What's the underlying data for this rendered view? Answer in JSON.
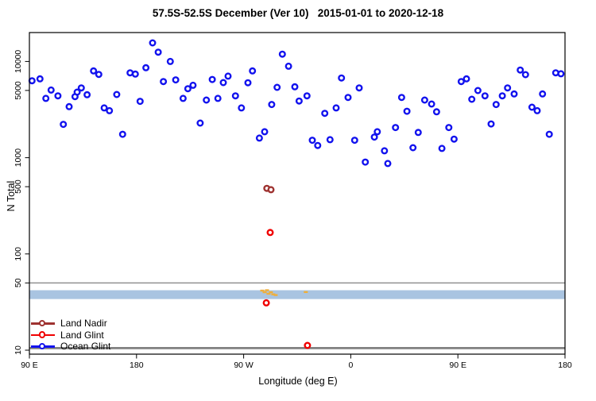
{
  "title": "57.5S-52.5S December (Ver 10)   2015-01-01 to 2020-12-18",
  "chart_data": {
    "type": "scatter",
    "title": "57.5S-52.5S December (Ver 10)   2015-01-01 to 2020-12-18",
    "xlabel": "Longitude (deg E)",
    "ylabel": "N Total",
    "x_axis": {
      "domain": [
        90,
        540
      ],
      "ticks": [
        {
          "value": 90,
          "label": "90 E"
        },
        {
          "value": 180,
          "label": "180"
        },
        {
          "value": 270,
          "label": "90 W"
        },
        {
          "value": 360,
          "label": "0"
        },
        {
          "value": 450,
          "label": "90 E"
        },
        {
          "value": 540,
          "label": "180"
        }
      ]
    },
    "y_axis": {
      "scale": "log",
      "domain": [
        8.5,
        22000
      ],
      "ticks": [
        {
          "value": 10000,
          "label": "10000"
        },
        {
          "value": 5000,
          "label": "5000"
        },
        {
          "value": 1000,
          "label": "1000"
        },
        {
          "value": 500,
          "label": "500"
        },
        {
          "value": 100,
          "label": "100"
        },
        {
          "value": 50,
          "label": "50"
        },
        {
          "value": 10,
          "label": "10"
        }
      ]
    },
    "band": {
      "n_low": 34,
      "n_high": 42,
      "color": "#A9C4E1"
    },
    "ref_lines": [
      {
        "n": 50,
        "color": "#8C8C8C",
        "width": 1.4
      },
      {
        "n": 10.5,
        "color": "#808080",
        "width": 2.8
      }
    ],
    "land_marks": {
      "color": "#EFAF3C",
      "points": [
        {
          "lon": 285.6,
          "n": 41.6
        },
        {
          "lon": 287.6,
          "n": 40.0
        },
        {
          "lon": 289.6,
          "n": 42.0
        },
        {
          "lon": 290.9,
          "n": 38.6
        },
        {
          "lon": 292.9,
          "n": 40.0
        },
        {
          "lon": 294.9,
          "n": 38.0
        },
        {
          "lon": 296.9,
          "n": 37.4
        },
        {
          "lon": 322.2,
          "n": 40.2
        }
      ]
    },
    "series": [
      {
        "name": "Land Nadir",
        "color": "#9E3230",
        "points": [
          {
            "lon": 289.5,
            "n": 480
          },
          {
            "lon": 293.0,
            "n": 465
          }
        ]
      },
      {
        "name": "Land Glint",
        "color": "#F00000",
        "points": [
          {
            "lon": 292.3,
            "n": 167
          },
          {
            "lon": 289.0,
            "n": 31
          },
          {
            "lon": 323.6,
            "n": 11.2
          }
        ]
      },
      {
        "name": "Ocean Glint",
        "color": "#1212EE",
        "points": [
          {
            "lon": 92.2,
            "n": 6300
          },
          {
            "lon": 98.9,
            "n": 6600
          },
          {
            "lon": 103.8,
            "n": 4130
          },
          {
            "lon": 108.2,
            "n": 5050
          },
          {
            "lon": 114.0,
            "n": 4390
          },
          {
            "lon": 123.4,
            "n": 3390
          },
          {
            "lon": 118.5,
            "n": 2220
          },
          {
            "lon": 128.3,
            "n": 4310
          },
          {
            "lon": 130.1,
            "n": 4800
          },
          {
            "lon": 133.6,
            "n": 5310
          },
          {
            "lon": 138.5,
            "n": 4510
          },
          {
            "lon": 143.9,
            "n": 7980
          },
          {
            "lon": 148.3,
            "n": 7340
          },
          {
            "lon": 152.8,
            "n": 3290
          },
          {
            "lon": 157.2,
            "n": 3080
          },
          {
            "lon": 163.4,
            "n": 4540
          },
          {
            "lon": 168.3,
            "n": 1750
          },
          {
            "lon": 174.6,
            "n": 7620
          },
          {
            "lon": 179.0,
            "n": 7390
          },
          {
            "lon": 187.9,
            "n": 8610
          },
          {
            "lon": 183.0,
            "n": 3850
          },
          {
            "lon": 193.5,
            "n": 15600
          },
          {
            "lon": 198.2,
            "n": 12500
          },
          {
            "lon": 202.6,
            "n": 6180
          },
          {
            "lon": 208.4,
            "n": 10000
          },
          {
            "lon": 212.9,
            "n": 6430
          },
          {
            "lon": 223.1,
            "n": 5210
          },
          {
            "lon": 227.5,
            "n": 5660
          },
          {
            "lon": 219.1,
            "n": 4130
          },
          {
            "lon": 233.5,
            "n": 2290
          },
          {
            "lon": 238.7,
            "n": 3970
          },
          {
            "lon": 243.6,
            "n": 6500
          },
          {
            "lon": 248.4,
            "n": 4130
          },
          {
            "lon": 252.9,
            "n": 6030
          },
          {
            "lon": 256.9,
            "n": 7030
          },
          {
            "lon": 263.1,
            "n": 4390
          },
          {
            "lon": 268.1,
            "n": 3290
          },
          {
            "lon": 273.6,
            "n": 6010
          },
          {
            "lon": 277.4,
            "n": 7980
          },
          {
            "lon": 283.2,
            "n": 1600
          },
          {
            "lon": 287.6,
            "n": 1860
          },
          {
            "lon": 293.6,
            "n": 3570
          },
          {
            "lon": 298.1,
            "n": 5380
          },
          {
            "lon": 302.5,
            "n": 11900
          },
          {
            "lon": 307.7,
            "n": 8930
          },
          {
            "lon": 313.0,
            "n": 5450
          },
          {
            "lon": 316.6,
            "n": 3880
          },
          {
            "lon": 323.2,
            "n": 4390
          },
          {
            "lon": 352.2,
            "n": 6730
          },
          {
            "lon": 367.1,
            "n": 5310
          },
          {
            "lon": 357.7,
            "n": 4230
          },
          {
            "lon": 347.7,
            "n": 3290
          },
          {
            "lon": 338.2,
            "n": 2890
          },
          {
            "lon": 402.7,
            "n": 4230
          },
          {
            "lon": 407.2,
            "n": 3040
          },
          {
            "lon": 422.1,
            "n": 3970
          },
          {
            "lon": 427.9,
            "n": 3610
          },
          {
            "lon": 382.3,
            "n": 1860
          },
          {
            "lon": 379.8,
            "n": 1640
          },
          {
            "lon": 397.6,
            "n": 2060
          },
          {
            "lon": 416.7,
            "n": 1830
          },
          {
            "lon": 327.7,
            "n": 1520
          },
          {
            "lon": 332.2,
            "n": 1340
          },
          {
            "lon": 342.6,
            "n": 1540
          },
          {
            "lon": 363.3,
            "n": 1520
          },
          {
            "lon": 388.3,
            "n": 1180
          },
          {
            "lon": 412.3,
            "n": 1270
          },
          {
            "lon": 372.2,
            "n": 900
          },
          {
            "lon": 391.1,
            "n": 870
          },
          {
            "lon": 432.1,
            "n": 3000
          },
          {
            "lon": 452.8,
            "n": 6180
          },
          {
            "lon": 457.2,
            "n": 6600
          },
          {
            "lon": 466.8,
            "n": 4990
          },
          {
            "lon": 472.8,
            "n": 4390
          },
          {
            "lon": 461.7,
            "n": 4050
          },
          {
            "lon": 482.1,
            "n": 3570
          },
          {
            "lon": 487.3,
            "n": 4390
          },
          {
            "lon": 491.7,
            "n": 5310
          },
          {
            "lon": 497.3,
            "n": 4600
          },
          {
            "lon": 502.4,
            "n": 8150
          },
          {
            "lon": 506.8,
            "n": 7300
          },
          {
            "lon": 512.2,
            "n": 3350
          },
          {
            "lon": 516.6,
            "n": 3080
          },
          {
            "lon": 521.1,
            "n": 4600
          },
          {
            "lon": 526.8,
            "n": 1750
          },
          {
            "lon": 532.2,
            "n": 7620
          },
          {
            "lon": 536.6,
            "n": 7450
          },
          {
            "lon": 442.4,
            "n": 2060
          },
          {
            "lon": 446.8,
            "n": 1560
          },
          {
            "lon": 436.6,
            "n": 1250
          },
          {
            "lon": 477.9,
            "n": 2240
          }
        ]
      }
    ],
    "legend_position": "bottom-left",
    "grid": false
  }
}
